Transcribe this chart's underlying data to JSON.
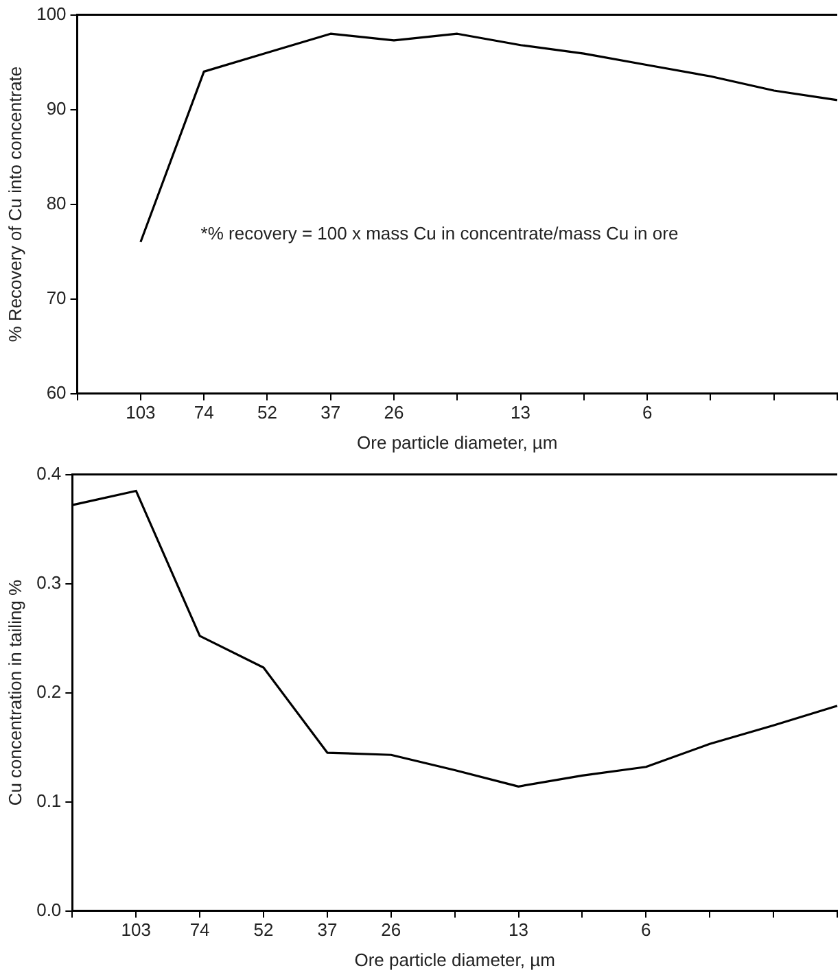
{
  "chart_data": [
    {
      "type": "line",
      "xlabel": "Ore particle diameter, µm",
      "ylabel": "% Recovery of Cu into concentrate",
      "categories": [
        null,
        "103",
        "74",
        "52",
        "37",
        "26",
        null,
        "13",
        null,
        "6",
        null,
        null,
        null
      ],
      "values": [
        null,
        76,
        94,
        96,
        98,
        97.3,
        98,
        96.8,
        95.9,
        94.7,
        93.5,
        92,
        91
      ],
      "color": "#000000",
      "marker": "none",
      "ylim": [
        60,
        100
      ],
      "yticks": [
        60,
        70,
        80,
        90,
        100
      ],
      "grid": false,
      "legend": false,
      "annotations": [
        "*% recovery = 100 x mass Cu in concentrate/mass Cu in ore"
      ]
    },
    {
      "type": "line",
      "xlabel": "Ore particle diameter, µm",
      "ylabel": "Cu concentration in tailing %",
      "categories": [
        null,
        "103",
        "74",
        "52",
        "37",
        "26",
        null,
        "13",
        null,
        "6",
        null,
        null,
        null
      ],
      "values": [
        0.372,
        0.385,
        0.252,
        0.223,
        0.145,
        0.143,
        0.129,
        0.114,
        0.124,
        0.132,
        0.153,
        0.17,
        0.188
      ],
      "color": "#000000",
      "marker": "none",
      "ylim": [
        0,
        0.4
      ],
      "yticks": [
        {
          "value": 0,
          "label": "0.0"
        },
        0.1,
        0.2,
        0.3,
        0.4
      ],
      "grid": false,
      "legend": false
    }
  ]
}
